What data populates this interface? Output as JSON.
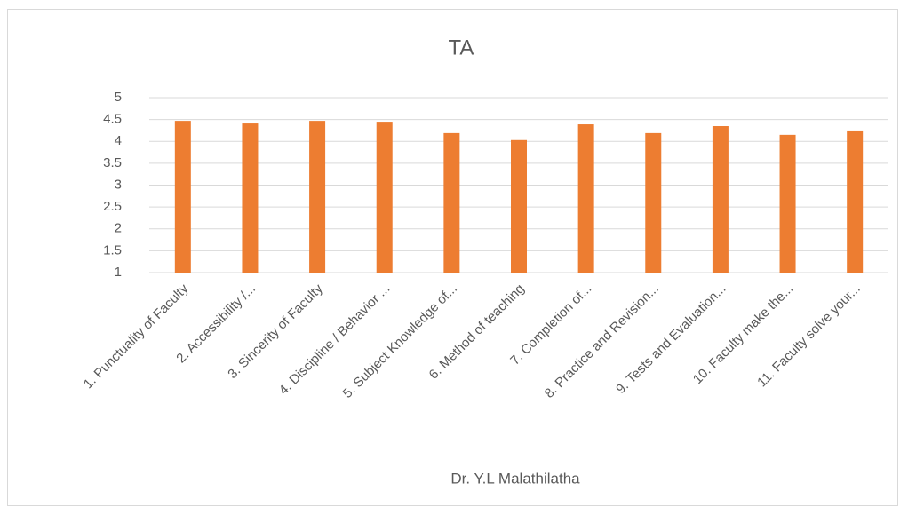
{
  "chart_data": {
    "type": "bar",
    "title": "TA",
    "x_label": "Dr. Y.L Malathilatha",
    "categories": [
      "1. Punctuality of Faculty",
      "2. Accessibility /...",
      "3. Sincerity of Faculty",
      "4. Discipline / Behavior ...",
      "5. Subject Knowledge of...",
      "6. Method of teaching",
      "7. Completion of...",
      "8. Practice and Revision...",
      "9. Tests and Evaluation...",
      "10. Faculty make the...",
      "11. Faculty solve your..."
    ],
    "values": [
      4.47,
      4.41,
      4.47,
      4.45,
      4.19,
      4.03,
      4.39,
      4.19,
      4.35,
      4.15,
      4.25
    ],
    "color": "#ed7d31",
    "ylim": [
      1,
      5
    ],
    "yticks": [
      1,
      1.5,
      2,
      2.5,
      3,
      3.5,
      4,
      4.5,
      5
    ],
    "grid": true
  }
}
